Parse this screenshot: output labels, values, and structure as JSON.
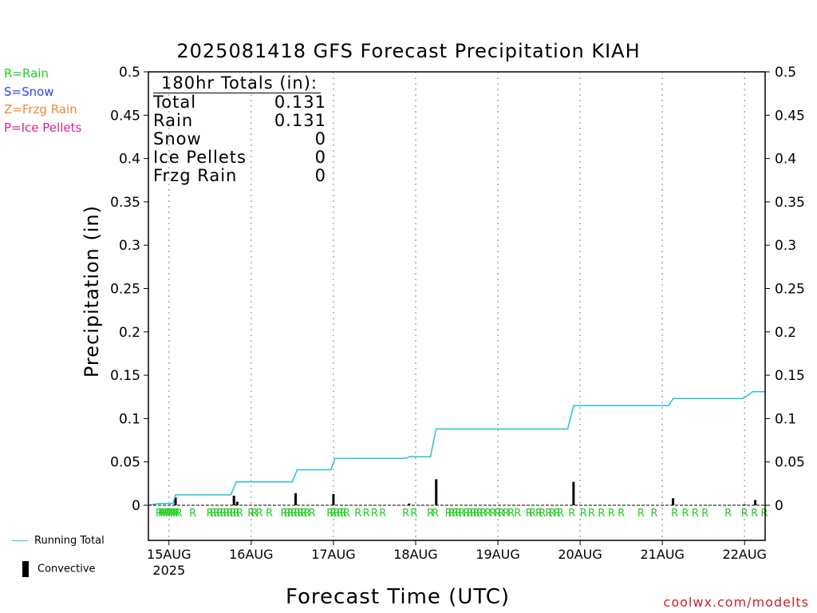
{
  "title": "2025081418 GFS Forecast Precipitation KIAH",
  "ptype_legend": [
    {
      "label": "R=Rain",
      "color": "#22cc22"
    },
    {
      "label": "S=Snow",
      "color": "#3344ee"
    },
    {
      "label": "Z=Frzg Rain",
      "color": "#f08a30"
    },
    {
      "label": "P=Ice Pellets",
      "color": "#e0208a"
    }
  ],
  "totals": {
    "header": "180hr Totals (in):",
    "rows": [
      {
        "label": "Total",
        "value": "0.131"
      },
      {
        "label": "Rain",
        "value": "0.131"
      },
      {
        "label": "Snow",
        "value": "0"
      },
      {
        "label": "Ice Pellets",
        "value": "0"
      },
      {
        "label": "Frzg Rain",
        "value": "0"
      }
    ]
  },
  "key": {
    "running_total": "Running Total",
    "convective": "Convective"
  },
  "credit": "coolwx.com/modelts",
  "colors": {
    "running_total": "#22c4d0",
    "convective": "#000000",
    "rain_marker": "#22cc22",
    "gridline": "#aaaaaa"
  },
  "chart_data": {
    "type": "line",
    "title": "2025081418 GFS Forecast Precipitation KIAH",
    "xlabel": "Forecast Time (UTC)",
    "ylabel": "Precipitation (in)",
    "x_unit": "days since 15AUG 00Z",
    "xlim": [
      -0.25,
      7.25
    ],
    "ylim": [
      0,
      0.5
    ],
    "y_ticks": [
      "0",
      "0.05",
      "0.1",
      "0.15",
      "0.2",
      "0.25",
      "0.3",
      "0.35",
      "0.4",
      "0.45",
      "0.5"
    ],
    "x_ticks": [
      {
        "x": 0,
        "label": "15AUG",
        "sublabel": "2025"
      },
      {
        "x": 1,
        "label": "16AUG"
      },
      {
        "x": 2,
        "label": "17AUG"
      },
      {
        "x": 3,
        "label": "18AUG"
      },
      {
        "x": 4,
        "label": "19AUG"
      },
      {
        "x": 5,
        "label": "20AUG"
      },
      {
        "x": 6,
        "label": "21AUG"
      },
      {
        "x": 7,
        "label": "22AUG"
      }
    ],
    "grid": true,
    "series": [
      {
        "name": "Running Total",
        "kind": "step-line",
        "points": [
          [
            -0.25,
            0
          ],
          [
            -0.12,
            0.002
          ],
          [
            0.05,
            0.002
          ],
          [
            0.08,
            0.012
          ],
          [
            0.75,
            0.012
          ],
          [
            0.82,
            0.027
          ],
          [
            1.5,
            0.027
          ],
          [
            1.56,
            0.041
          ],
          [
            1.97,
            0.041
          ],
          [
            2.02,
            0.054
          ],
          [
            2.88,
            0.054
          ],
          [
            2.92,
            0.056
          ],
          [
            3.18,
            0.056
          ],
          [
            3.25,
            0.088
          ],
          [
            4.85,
            0.088
          ],
          [
            4.92,
            0.115
          ],
          [
            6.08,
            0.115
          ],
          [
            6.13,
            0.123
          ],
          [
            6.97,
            0.123
          ],
          [
            7.03,
            0.126
          ],
          [
            7.1,
            0.131
          ],
          [
            7.25,
            0.131
          ]
        ]
      },
      {
        "name": "Convective",
        "kind": "bars",
        "points": [
          [
            0.08,
            0.009
          ],
          [
            0.79,
            0.011
          ],
          [
            0.83,
            0.004
          ],
          [
            1.54,
            0.014
          ],
          [
            2.0,
            0.013
          ],
          [
            2.92,
            0.002
          ],
          [
            3.25,
            0.03
          ],
          [
            4.92,
            0.027
          ],
          [
            6.13,
            0.008
          ],
          [
            7.0,
            0.001
          ],
          [
            7.13,
            0.006
          ]
        ]
      }
    ],
    "ptype_markers": {
      "symbol": "R",
      "x": [
        -0.12,
        -0.09,
        -0.06,
        -0.03,
        0.0,
        0.03,
        0.06,
        0.09,
        0.12,
        0.29,
        0.5,
        0.54,
        0.58,
        0.62,
        0.66,
        0.7,
        0.74,
        0.78,
        0.82,
        0.86,
        1.0,
        1.04,
        1.1,
        1.22,
        1.4,
        1.44,
        1.48,
        1.52,
        1.56,
        1.6,
        1.64,
        1.68,
        1.74,
        1.96,
        2.0,
        2.04,
        2.08,
        2.12,
        2.16,
        2.3,
        2.4,
        2.5,
        2.6,
        2.88,
        2.98,
        3.18,
        3.24,
        3.4,
        3.44,
        3.48,
        3.52,
        3.56,
        3.62,
        3.66,
        3.7,
        3.74,
        3.78,
        3.82,
        3.88,
        3.94,
        4.0,
        4.04,
        4.1,
        4.16,
        4.24,
        4.38,
        4.42,
        4.5,
        4.54,
        4.62,
        4.66,
        4.72,
        4.76,
        4.9,
        5.04,
        5.14,
        5.26,
        5.38,
        5.5,
        5.74,
        5.9,
        6.15,
        6.28,
        6.4,
        6.52,
        6.8,
        7.0,
        7.12,
        7.24
      ]
    }
  }
}
